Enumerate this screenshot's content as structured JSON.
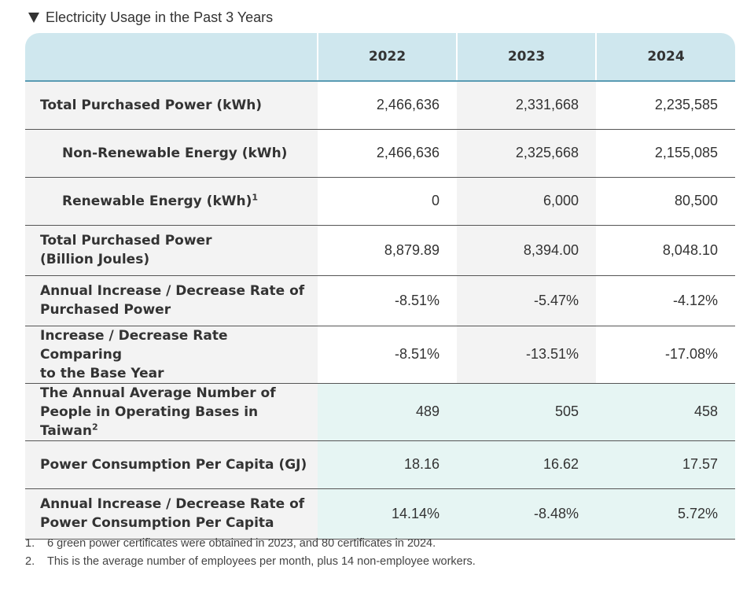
{
  "title": "Electricity Usage in the Past 3 Years",
  "table": {
    "header": [
      "",
      "2022",
      "2023",
      "2024"
    ],
    "rows": [
      {
        "label": "Total Purchased Power (kWh)",
        "label2": "",
        "sup": "",
        "values": [
          "2,466,636",
          "2,331,668",
          "2,235,585"
        ]
      },
      {
        "label": "Non-Renewable Energy (kWh)",
        "label2": "",
        "sup": "",
        "values": [
          "2,466,636",
          "2,325,668",
          "2,155,085"
        ]
      },
      {
        "label": "Renewable Energy (kWh)",
        "label2": "",
        "sup": "1",
        "values": [
          "0",
          "6,000",
          "80,500"
        ]
      },
      {
        "label": "Total Purchased Power",
        "label2": " (Billion Joules)",
        "sup": "",
        "values": [
          "8,879.89",
          "8,394.00",
          "8,048.10"
        ]
      },
      {
        "label": "Annual Increase / Decrease Rate of",
        "label2": "Purchased Power",
        "sup": "",
        "values": [
          "-8.51%",
          "-5.47%",
          "-4.12%"
        ]
      },
      {
        "label": "Increase / Decrease Rate Comparing",
        "label2": "to the Base Year",
        "sup": "",
        "values": [
          "-8.51%",
          "-13.51%",
          "-17.08%"
        ]
      },
      {
        "label": "The Annual Average Number of",
        "label2": "People in Operating Bases in Taiwan",
        "sup": "2",
        "values": [
          "489",
          "505",
          "458"
        ]
      },
      {
        "label": "Power Consumption Per Capita (GJ)",
        "label2": "",
        "sup": "",
        "values": [
          "18.16",
          "16.62",
          "17.57"
        ]
      },
      {
        "label": "Annual Increase / Decrease Rate of",
        "label2": "Power Consumption Per Capita",
        "sup": "",
        "values": [
          "14.14%",
          "-8.48%",
          "5.72%"
        ]
      }
    ]
  },
  "notes": [
    {
      "num": "1.",
      "text": "6 green power certificates were obtained in 2023, and 80 certificates in 2024."
    },
    {
      "num": "2.",
      "text": "This is the average number of employees per month, plus 14 non-employee workers."
    }
  ]
}
